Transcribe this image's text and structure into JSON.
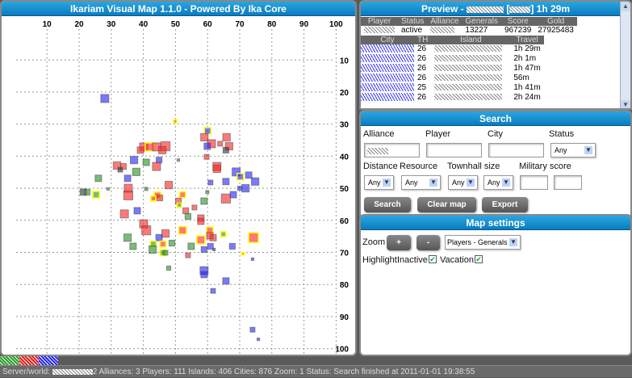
{
  "map": {
    "title": "Ikariam Visual Map 1.1.0 - Powered By Ika Core",
    "x_ticks": [
      10,
      20,
      30,
      40,
      50,
      60,
      70,
      80,
      90,
      100
    ],
    "y_ticks": [
      10,
      20,
      30,
      40,
      50,
      60,
      70,
      80,
      90,
      100
    ],
    "colors": {
      "r": "#ff2020",
      "g": "#209020",
      "b": "#2020ff",
      "d": "#303030",
      "highlight": "#ffff00"
    },
    "cities": [
      [
        28,
        22,
        2.5,
        "b",
        0
      ],
      [
        49.9,
        29.1,
        1,
        "r",
        1
      ],
      [
        60,
        32.1,
        2,
        "b",
        1
      ],
      [
        59,
        34.1,
        2.3,
        "r",
        0
      ],
      [
        61.2,
        36.1,
        2.5,
        "r",
        0
      ],
      [
        59.9,
        36.9,
        2,
        "b",
        0
      ],
      [
        63.9,
        36.1,
        1.5,
        "r",
        0
      ],
      [
        65.9,
        34.1,
        2.3,
        "r",
        0
      ],
      [
        66.7,
        36.9,
        2.3,
        "r",
        0
      ],
      [
        65.7,
        38.1,
        1.8,
        "d",
        0
      ],
      [
        40.1,
        37.1,
        2.5,
        "r",
        0
      ],
      [
        41.9,
        37.1,
        2.5,
        "r",
        1
      ],
      [
        44.1,
        37.1,
        2.5,
        "r",
        0
      ],
      [
        46.9,
        36.9,
        2.8,
        "r",
        0
      ],
      [
        45.9,
        38.1,
        2.3,
        "r",
        0
      ],
      [
        39.1,
        38.1,
        2,
        "r",
        0
      ],
      [
        37.1,
        41.2,
        2.3,
        "b",
        0
      ],
      [
        40.9,
        41.9,
        2,
        "g",
        0
      ],
      [
        44.9,
        41.2,
        1.8,
        "b",
        0
      ],
      [
        44.1,
        43.2,
        2.5,
        "r",
        0
      ],
      [
        50.9,
        41.2,
        0.8,
        "g",
        0
      ],
      [
        59.7,
        40.2,
        1.5,
        "r",
        0
      ],
      [
        62.9,
        43.2,
        2.5,
        "r",
        0
      ],
      [
        62.9,
        43.9,
        2.3,
        "r",
        0
      ],
      [
        31.8,
        42.9,
        2.3,
        "r",
        0
      ],
      [
        33.8,
        43.2,
        1.8,
        "r",
        0
      ],
      [
        32.8,
        44.2,
        1.5,
        "d",
        0
      ],
      [
        37.8,
        44.9,
        2.3,
        "g",
        0
      ],
      [
        68.9,
        44.9,
        2.5,
        "b",
        0
      ],
      [
        70.2,
        46.4,
        2,
        "b",
        1
      ],
      [
        72.8,
        45.9,
        2,
        "b",
        0
      ],
      [
        74.8,
        47.9,
        2.3,
        "b",
        0
      ],
      [
        71.8,
        50,
        2.3,
        "b",
        0
      ],
      [
        70,
        50,
        1.3,
        "b",
        0
      ],
      [
        65.7,
        47.9,
        2,
        "b",
        0
      ],
      [
        60.9,
        48.2,
        1.5,
        "b",
        0
      ],
      [
        26,
        46.9,
        2,
        "g",
        0
      ],
      [
        35.1,
        46.9,
        2,
        "b",
        0
      ],
      [
        35.3,
        50,
        2.5,
        "r",
        0
      ],
      [
        35.3,
        52.2,
        2.8,
        "r",
        0
      ],
      [
        47.9,
        49,
        2.3,
        "r",
        0
      ],
      [
        29,
        50.2,
        0.8,
        "g",
        0
      ],
      [
        40.9,
        50.2,
        1,
        "g",
        0
      ],
      [
        21.3,
        51.2,
        2,
        "d",
        0
      ],
      [
        22.5,
        51.2,
        1.8,
        "g",
        0
      ],
      [
        25.3,
        52,
        2,
        "g",
        1
      ],
      [
        44.4,
        52.2,
        2,
        "r",
        1
      ],
      [
        45.1,
        53,
        1.8,
        "r",
        0
      ],
      [
        43.1,
        53.2,
        1.5,
        "r",
        1
      ],
      [
        52.2,
        52,
        1.8,
        "r",
        1
      ],
      [
        50.9,
        54,
        1.8,
        "r",
        0
      ],
      [
        51.2,
        55.3,
        1.3,
        "g",
        1
      ],
      [
        58.9,
        54,
        2,
        "g",
        0
      ],
      [
        59.9,
        51.2,
        1,
        "g",
        0
      ],
      [
        65.7,
        53.2,
        2.8,
        "r",
        0
      ],
      [
        68,
        52,
        2,
        "b",
        0
      ],
      [
        55.9,
        56,
        1.5,
        "r",
        0
      ],
      [
        53.2,
        57,
        1.8,
        "r",
        0
      ],
      [
        53.9,
        58.8,
        1.8,
        "g",
        0
      ],
      [
        57.9,
        59.3,
        2,
        "r",
        0
      ],
      [
        34.1,
        58,
        2.5,
        "r",
        0
      ],
      [
        38.1,
        57,
        2,
        "b",
        0
      ],
      [
        57.9,
        60.3,
        2,
        "r",
        0
      ],
      [
        40.1,
        61.1,
        2.5,
        "r",
        0
      ],
      [
        40.9,
        63.1,
        2.8,
        "r",
        0
      ],
      [
        46.9,
        64.1,
        2.3,
        "r",
        0
      ],
      [
        52.2,
        63.1,
        2.3,
        "r",
        1
      ],
      [
        35.1,
        65.4,
        2.3,
        "g",
        0
      ],
      [
        36.8,
        68.1,
        2,
        "g",
        0
      ],
      [
        44.9,
        65.4,
        2,
        "b",
        0
      ],
      [
        43.1,
        67.4,
        1.8,
        "g",
        1
      ],
      [
        42.9,
        69.1,
        2.3,
        "g",
        0
      ],
      [
        46.1,
        67.4,
        1.8,
        "r",
        1
      ],
      [
        46.1,
        70.1,
        1.8,
        "g",
        1
      ],
      [
        46.9,
        70.1,
        1.5,
        "g",
        0
      ],
      [
        48.9,
        67.1,
        1.8,
        "g",
        0
      ],
      [
        57.9,
        66.1,
        2.5,
        "r",
        1
      ],
      [
        60.7,
        63.1,
        2,
        "r",
        1
      ],
      [
        61.7,
        65.4,
        2,
        "r",
        0
      ],
      [
        60.7,
        64.8,
        2,
        "r",
        0
      ],
      [
        64.9,
        64.3,
        1.5,
        "g",
        1
      ],
      [
        74.3,
        65.4,
        3,
        "r",
        1
      ],
      [
        54.9,
        68.1,
        2,
        "g",
        0
      ],
      [
        60.9,
        68.1,
        1.8,
        "b",
        0
      ],
      [
        58.9,
        69.1,
        1.8,
        "b",
        0
      ],
      [
        62,
        69.1,
        0.8,
        "b",
        0
      ],
      [
        67.7,
        68.1,
        1.8,
        "b",
        0
      ],
      [
        53.9,
        70.9,
        1.5,
        "r",
        0
      ],
      [
        71,
        70.4,
        0.8,
        "r",
        1
      ],
      [
        74,
        72.1,
        0.8,
        "b",
        0
      ],
      [
        47.9,
        74.9,
        1.3,
        "g",
        0
      ],
      [
        58.9,
        75.7,
        2.5,
        "b",
        0
      ],
      [
        58.9,
        76.9,
        2,
        "b",
        0
      ],
      [
        65.7,
        78.9,
        2,
        "b",
        0
      ],
      [
        61.7,
        82,
        1.5,
        "b",
        0
      ],
      [
        74,
        94.1,
        1.5,
        "b",
        0
      ],
      [
        75.8,
        97.1,
        0.8,
        "b",
        0
      ]
    ]
  },
  "preview": {
    "title_prefix": "Preview - ",
    "title_suffix": "1h 29m",
    "player_headers": [
      "Player",
      "Status",
      "Alliance",
      "Generals",
      "Score",
      "Gold"
    ],
    "player": {
      "status": "active",
      "generals": "13227",
      "score": "967239",
      "gold": "27925483"
    },
    "city_headers": [
      "City",
      "TH",
      "Island",
      "Travel"
    ],
    "cities": [
      {
        "th": "26",
        "travel": "1h 29m"
      },
      {
        "th": "26",
        "travel": "2h 1m"
      },
      {
        "th": "26",
        "travel": "1h 47m"
      },
      {
        "th": "26",
        "travel": "56m"
      },
      {
        "th": "25",
        "travel": "1h 41m"
      },
      {
        "th": "26",
        "travel": "2h 24m"
      }
    ]
  },
  "search": {
    "title": "Search",
    "alliance_label": "Alliance",
    "player_label": "Player",
    "city_label": "City",
    "status_label": "Status",
    "status_value": "Any",
    "distance_label": "Distance",
    "resource_label": "Resource",
    "townhall_label": "Townhall size",
    "military_label": "Military score",
    "distance_value": "Any",
    "resource_value": "Any",
    "th_min": "Any",
    "th_max": "Any",
    "search_btn": "Search",
    "clear_btn": "Clear map",
    "export_btn": "Export"
  },
  "settings": {
    "title": "Map settings",
    "zoom_label": "Zoom",
    "plus": "+",
    "minus": "-",
    "mode_value": "Players - Generals",
    "highlight_label": "Highlight:",
    "inactive_label": "Inactive",
    "inactive_checked": true,
    "vacation_label": "Vacation",
    "vacation_checked": true
  },
  "legend_colors": [
    "#2a9a2a",
    "#e02020",
    "#2a2ae8"
  ],
  "status": {
    "server_label": "Server/world:",
    "text": "2 Alliances: 3 Players: 111 Islands: 406 Cities: 876 Zoom: 1 Status: Search finished at 2011-01-01 19:38:55"
  }
}
